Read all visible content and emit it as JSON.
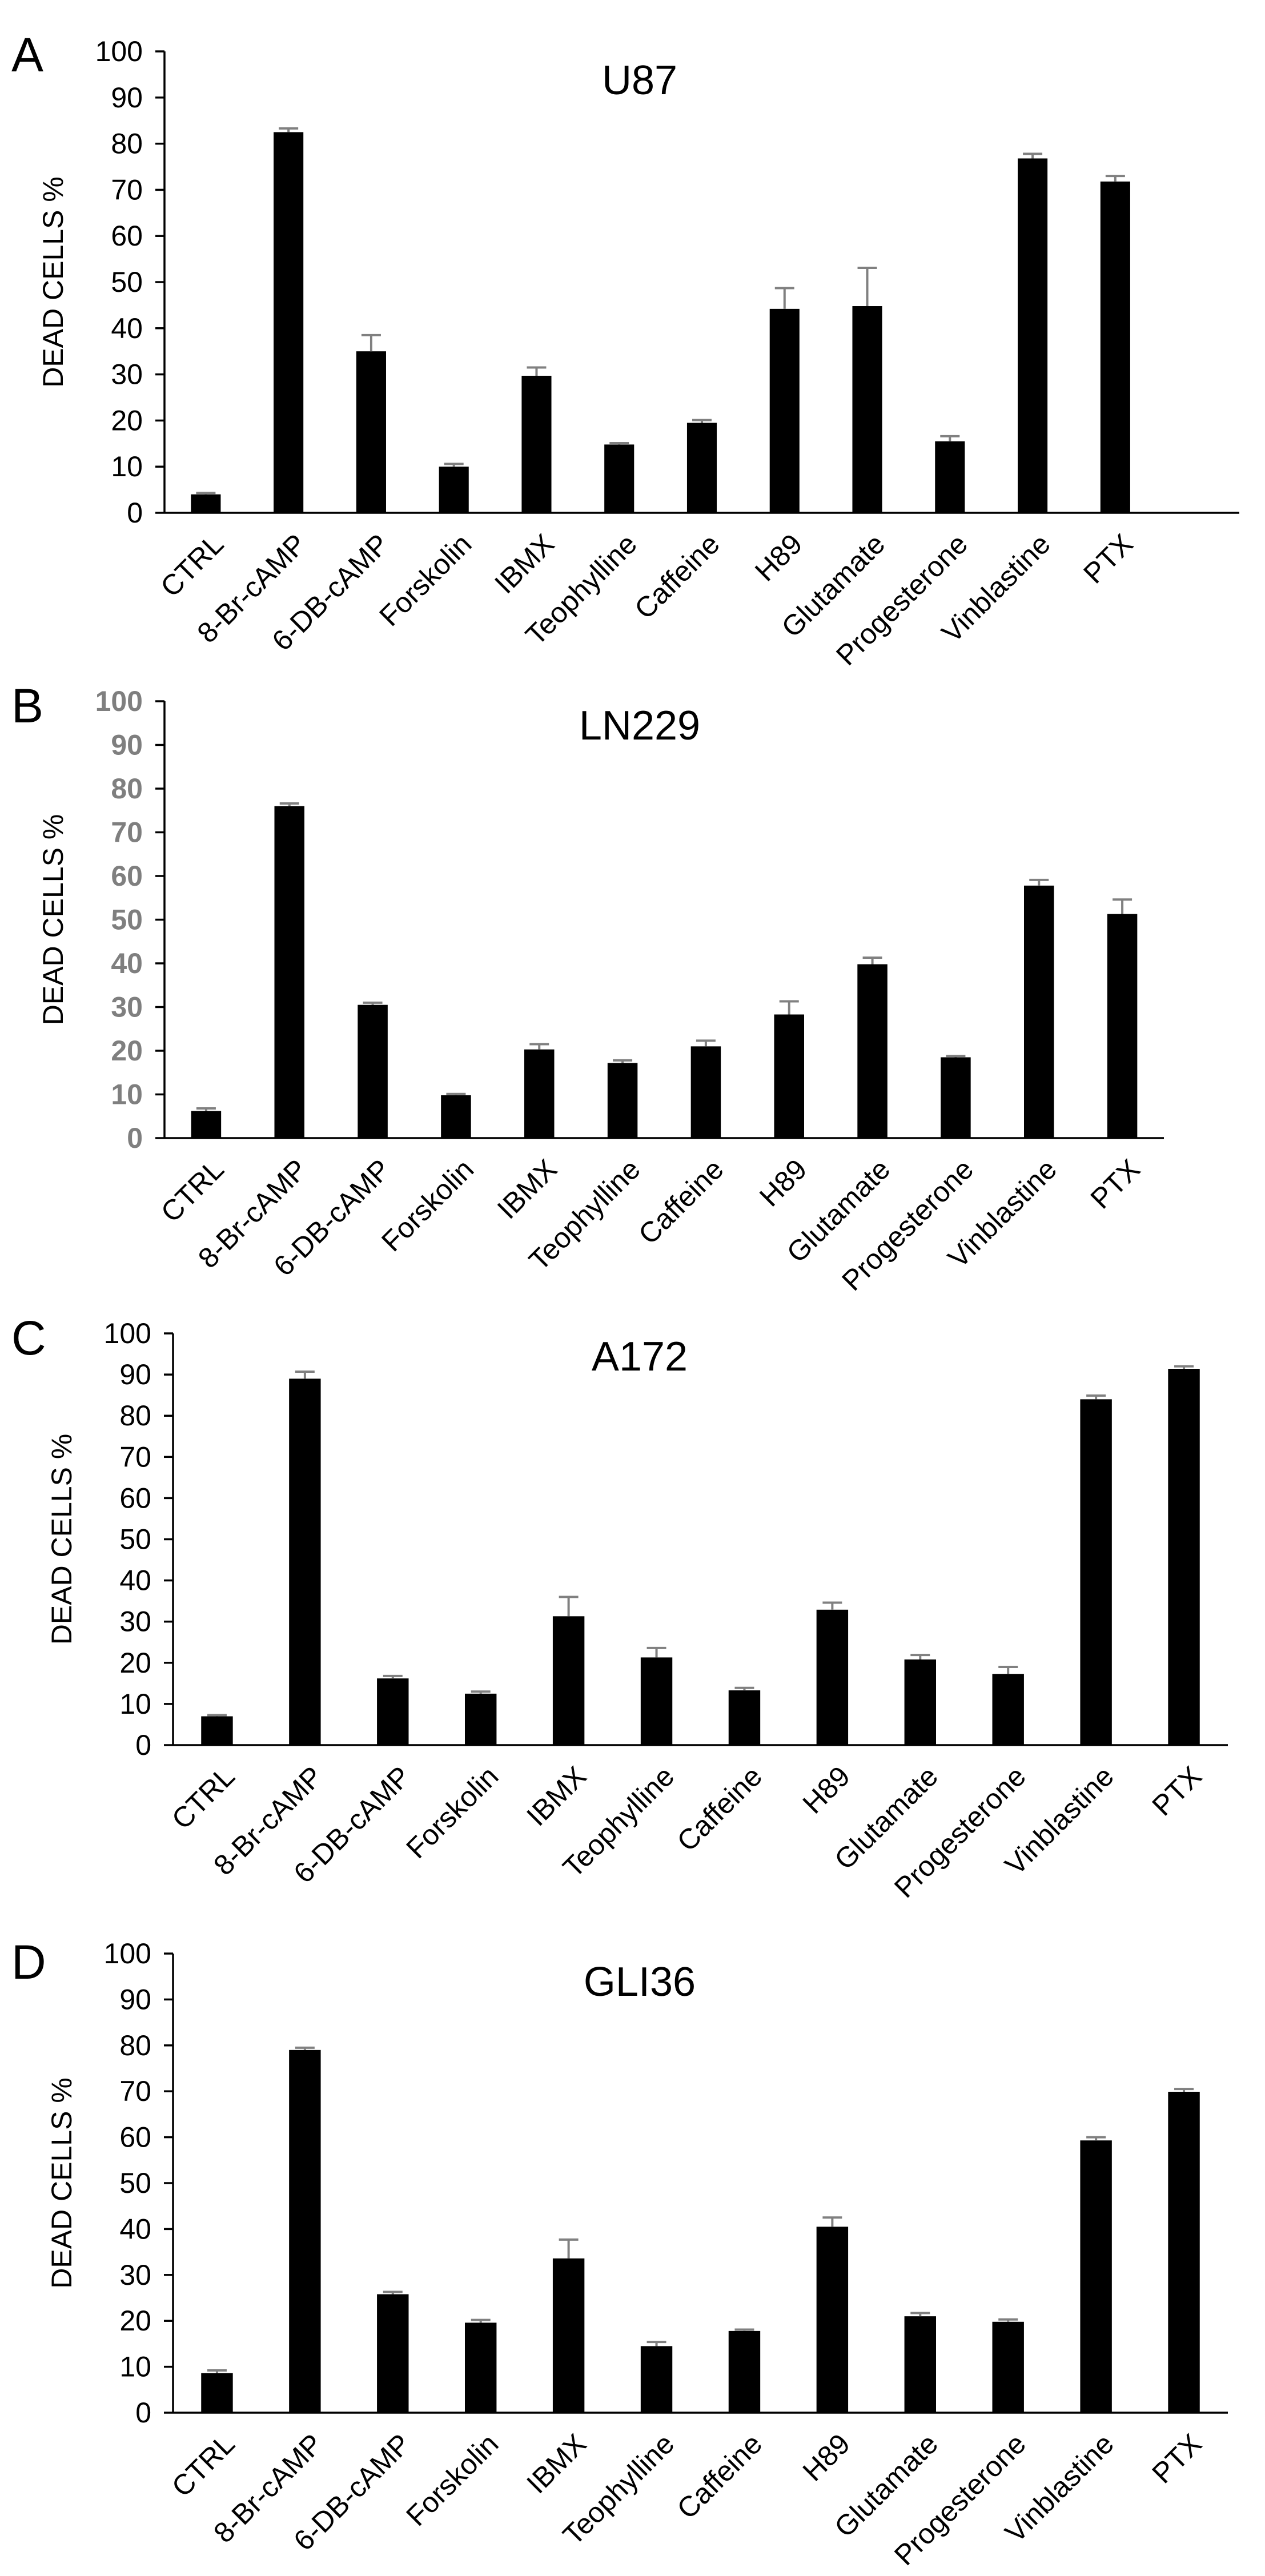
{
  "chart_data": [
    {
      "type": "bar",
      "panel": "A",
      "title": "U87",
      "ylabel": "DEAD CELLS %",
      "ylim": [
        0,
        100
      ],
      "yticks": [
        0,
        10,
        20,
        30,
        40,
        50,
        60,
        70,
        80,
        90,
        100
      ],
      "ytick_color": "#000000",
      "categories": [
        "CTRL",
        "8-Br-cAMP",
        "6-DB-cAMP",
        "Forskolin",
        "IBMX",
        "Teophylline",
        "Caffeine",
        "H89",
        "Glutamate",
        "Progesterone",
        "Vinblastine",
        "PTX"
      ],
      "values": [
        4,
        82.5,
        35,
        10,
        29.7,
        14.8,
        19.5,
        44.2,
        44.8,
        15.5,
        76.8,
        71.8
      ],
      "errors": [
        0.3,
        0.8,
        3.5,
        0.6,
        1.8,
        0.3,
        0.6,
        4.5,
        8.3,
        1.1,
        1.0,
        1.2
      ],
      "extra_slot": true
    },
    {
      "type": "bar",
      "panel": "B",
      "title": "LN229",
      "ylabel": "DEAD CELLS %",
      "ylim": [
        0,
        100
      ],
      "yticks": [
        0,
        10,
        20,
        30,
        40,
        50,
        60,
        70,
        80,
        90,
        100
      ],
      "ytick_color": "#7f7f7f",
      "categories": [
        "CTRL",
        "8-Br-cAMP",
        "6-DB-cAMP",
        "Forskolin",
        "IBMX",
        "Teophylline",
        "Caffeine",
        "H89",
        "Glutamate",
        "Progesterone",
        "Vinblastine",
        "PTX"
      ],
      "values": [
        6.2,
        76,
        30.5,
        9.8,
        20.3,
        17.2,
        21,
        28.3,
        39.8,
        18.5,
        57.8,
        51.3
      ],
      "errors": [
        0.6,
        0.6,
        0.5,
        0.3,
        1.2,
        0.6,
        1.3,
        3.0,
        1.5,
        0.3,
        1.3,
        3.3
      ],
      "extra_slot": false
    },
    {
      "type": "bar",
      "panel": "C",
      "title": "A172",
      "ylabel": "DEAD CELLS %",
      "ylim": [
        0,
        100
      ],
      "yticks": [
        0,
        10,
        20,
        30,
        40,
        50,
        60,
        70,
        80,
        90,
        100
      ],
      "ytick_color": "#000000",
      "categories": [
        "CTRL",
        "8-Br-cAMP",
        "6-DB-cAMP",
        "Forskolin",
        "IBMX",
        "Teophylline",
        "Caffeine",
        "H89",
        "Glutamate",
        "Progesterone",
        "Vinblastine",
        "PTX"
      ],
      "values": [
        7,
        89,
        16.2,
        12.5,
        31.3,
        21.3,
        13.3,
        32.9,
        20.8,
        17.3,
        84,
        91.4
      ],
      "errors": [
        0.3,
        1.7,
        0.6,
        0.5,
        4.7,
        2.3,
        0.6,
        1.7,
        1.1,
        1.7,
        0.9,
        0.6
      ],
      "extra_slot": false
    },
    {
      "type": "bar",
      "panel": "D",
      "title": "GLI36",
      "ylabel": "DEAD CELLS %",
      "ylim": [
        0,
        100
      ],
      "yticks": [
        0,
        10,
        20,
        30,
        40,
        50,
        60,
        70,
        80,
        90,
        100
      ],
      "ytick_color": "#000000",
      "categories": [
        "CTRL",
        "8-Br-cAMP",
        "6-DB-cAMP",
        "Forskolin",
        "IBMX",
        "Teophylline",
        "Caffeine",
        "H89",
        "Glutamate",
        "Progesterone",
        "Vinblastine",
        "PTX"
      ],
      "values": [
        8.6,
        79,
        25.8,
        19.6,
        33.6,
        14.5,
        17.8,
        40.5,
        21,
        19.8,
        59.3,
        69.9
      ],
      "errors": [
        0.6,
        0.5,
        0.5,
        0.6,
        4.1,
        0.9,
        0.3,
        2.0,
        0.7,
        0.5,
        0.7,
        0.6
      ],
      "extra_slot": false
    }
  ]
}
